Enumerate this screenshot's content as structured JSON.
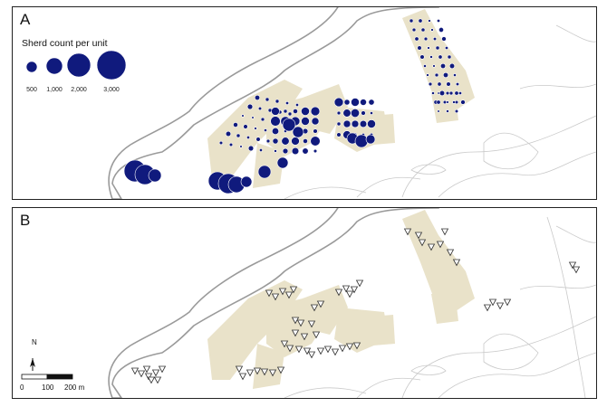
{
  "panels": {
    "a": {
      "letter": "A"
    },
    "b": {
      "letter": "B"
    }
  },
  "legend": {
    "title": "Sherd count per unit",
    "items": [
      {
        "label": "500",
        "value": 500
      },
      {
        "label": "1,000",
        "value": 1000
      },
      {
        "label": "2,000",
        "value": 2000
      },
      {
        "label": "3,000",
        "value": 3000
      }
    ]
  },
  "north_arrow": {
    "label": "N"
  },
  "scale_bar": {
    "labels": [
      "0",
      "100",
      "200 m"
    ]
  },
  "colors": {
    "symbol_fill": "#101a7d",
    "survey_units": "#e8e1c8",
    "site_outline": "#999999",
    "contours": "#bdbdbd",
    "triangle_stroke": "#333333"
  },
  "icons": [
    "north-arrow-icon",
    "triangle-marker-icon"
  ]
}
